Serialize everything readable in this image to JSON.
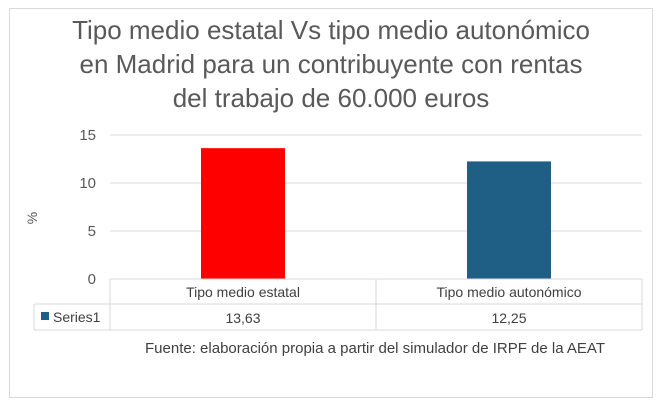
{
  "chart_data": {
    "type": "bar",
    "title_lines": [
      "Tipo medio estatal Vs tipo medio autonómico",
      "en Madrid para un contribuyente con rentas",
      "del trabajo de 60.000 euros"
    ],
    "categories": [
      "Tipo medio estatal",
      "Tipo medio autonómico"
    ],
    "series": [
      {
        "name": "Series1",
        "values": [
          13.63,
          12.25
        ],
        "value_labels": [
          "13,63",
          "12,25"
        ],
        "point_colors": [
          "#ff0000",
          "#1f5f86"
        ],
        "legend_color": "#1f5f86"
      }
    ],
    "ylabel": "%",
    "xlabel": "",
    "ylim": [
      0,
      15
    ],
    "yticks": [
      0,
      5,
      10,
      15
    ],
    "grid": true,
    "data_table": true,
    "source_note": "Fuente: elaboración propia a partir del simulador de IRPF de la AEAT"
  }
}
